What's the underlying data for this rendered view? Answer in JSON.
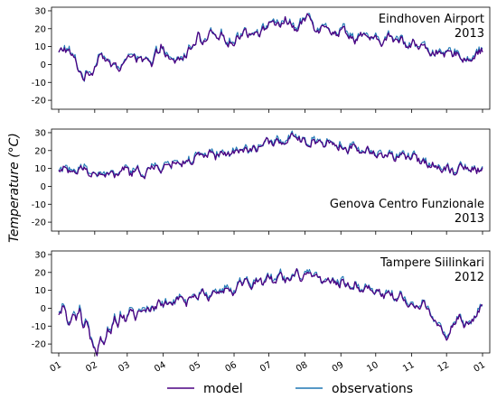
{
  "chart_data": [
    {
      "type": "line",
      "station": "Eindhoven Airport",
      "year": "2013",
      "label_position": "top-right",
      "ylim": [
        -25,
        32
      ],
      "yticks": [
        -20,
        -10,
        0,
        10,
        20,
        30
      ],
      "xlim": [
        0,
        365
      ],
      "xticks": [
        0,
        31,
        59,
        90,
        120,
        151,
        181,
        212,
        243,
        273,
        304,
        334,
        365
      ],
      "xticklabels": [
        "",
        "",
        "",
        "",
        "",
        "",
        "",
        "",
        "",
        "",
        "",
        "",
        ""
      ],
      "anchors": [
        [
          0,
          6
        ],
        [
          5,
          9
        ],
        [
          10,
          6
        ],
        [
          14,
          2
        ],
        [
          18,
          -4
        ],
        [
          22,
          -7
        ],
        [
          26,
          -5
        ],
        [
          30,
          -3
        ],
        [
          33,
          3
        ],
        [
          36,
          8
        ],
        [
          40,
          3
        ],
        [
          44,
          -1
        ],
        [
          48,
          0
        ],
        [
          52,
          -3
        ],
        [
          56,
          1
        ],
        [
          60,
          2
        ],
        [
          64,
          8
        ],
        [
          68,
          3
        ],
        [
          72,
          1
        ],
        [
          76,
          2
        ],
        [
          80,
          -2
        ],
        [
          84,
          5
        ],
        [
          88,
          11
        ],
        [
          92,
          5
        ],
        [
          96,
          1
        ],
        [
          100,
          1
        ],
        [
          104,
          3
        ],
        [
          108,
          4
        ],
        [
          112,
          8
        ],
        [
          116,
          12
        ],
        [
          120,
          16
        ],
        [
          124,
          10
        ],
        [
          128,
          14
        ],
        [
          132,
          18
        ],
        [
          136,
          12
        ],
        [
          140,
          15
        ],
        [
          145,
          14
        ],
        [
          150,
          12
        ],
        [
          155,
          16
        ],
        [
          160,
          20
        ],
        [
          165,
          16
        ],
        [
          170,
          20
        ],
        [
          175,
          18
        ],
        [
          180,
          22
        ],
        [
          185,
          25
        ],
        [
          190,
          20
        ],
        [
          195,
          26
        ],
        [
          200,
          22
        ],
        [
          205,
          19
        ],
        [
          210,
          23
        ],
        [
          215,
          28
        ],
        [
          220,
          22
        ],
        [
          225,
          20
        ],
        [
          230,
          24
        ],
        [
          235,
          19
        ],
        [
          240,
          17
        ],
        [
          245,
          20
        ],
        [
          250,
          17
        ],
        [
          255,
          14
        ],
        [
          260,
          17
        ],
        [
          265,
          13
        ],
        [
          270,
          15
        ],
        [
          275,
          12
        ],
        [
          280,
          13
        ],
        [
          285,
          16
        ],
        [
          290,
          12
        ],
        [
          295,
          15
        ],
        [
          300,
          11
        ],
        [
          305,
          13
        ],
        [
          310,
          9
        ],
        [
          315,
          10
        ],
        [
          320,
          7
        ],
        [
          325,
          8
        ],
        [
          330,
          3
        ],
        [
          335,
          6
        ],
        [
          340,
          5
        ],
        [
          345,
          7
        ],
        [
          350,
          2
        ],
        [
          355,
          4
        ],
        [
          360,
          7
        ],
        [
          365,
          8
        ]
      ],
      "series": [
        {
          "name": "model",
          "color": "#4b0082"
        },
        {
          "name": "observations",
          "color": "#1f77b4"
        }
      ]
    },
    {
      "type": "line",
      "station": "Genova Centro Funzionale",
      "year": "2013",
      "label_position": "bottom-right",
      "ylim": [
        -25,
        32
      ],
      "yticks": [
        -20,
        -10,
        0,
        10,
        20,
        30
      ],
      "xlim": [
        0,
        365
      ],
      "xticks": [
        0,
        31,
        59,
        90,
        120,
        151,
        181,
        212,
        243,
        273,
        304,
        334,
        365
      ],
      "xticklabels": [
        "",
        "",
        "",
        "",
        "",
        "",
        "",
        "",
        "",
        "",
        "",
        "",
        ""
      ],
      "anchors": [
        [
          0,
          8
        ],
        [
          4,
          12
        ],
        [
          8,
          6
        ],
        [
          12,
          9
        ],
        [
          16,
          7
        ],
        [
          20,
          10
        ],
        [
          25,
          8
        ],
        [
          30,
          9
        ],
        [
          34,
          5
        ],
        [
          38,
          8
        ],
        [
          42,
          6
        ],
        [
          46,
          7
        ],
        [
          50,
          5
        ],
        [
          54,
          9
        ],
        [
          58,
          10
        ],
        [
          62,
          6
        ],
        [
          66,
          8
        ],
        [
          70,
          9
        ],
        [
          74,
          7
        ],
        [
          78,
          10
        ],
        [
          82,
          9
        ],
        [
          86,
          11
        ],
        [
          90,
          10
        ],
        [
          95,
          12
        ],
        [
          100,
          14
        ],
        [
          105,
          12
        ],
        [
          110,
          15
        ],
        [
          115,
          13
        ],
        [
          120,
          17
        ],
        [
          125,
          15
        ],
        [
          130,
          18
        ],
        [
          135,
          16
        ],
        [
          140,
          18
        ],
        [
          145,
          17
        ],
        [
          150,
          20
        ],
        [
          155,
          18
        ],
        [
          160,
          21
        ],
        [
          165,
          19
        ],
        [
          170,
          21
        ],
        [
          175,
          23
        ],
        [
          180,
          24
        ],
        [
          185,
          23
        ],
        [
          190,
          26
        ],
        [
          195,
          24
        ],
        [
          200,
          27
        ],
        [
          205,
          25
        ],
        [
          210,
          26
        ],
        [
          215,
          24
        ],
        [
          220,
          26
        ],
        [
          225,
          25
        ],
        [
          230,
          24
        ],
        [
          235,
          25
        ],
        [
          240,
          22
        ],
        [
          245,
          23
        ],
        [
          250,
          21
        ],
        [
          255,
          22
        ],
        [
          260,
          19
        ],
        [
          265,
          21
        ],
        [
          270,
          18
        ],
        [
          275,
          19
        ],
        [
          280,
          17
        ],
        [
          285,
          18
        ],
        [
          290,
          16
        ],
        [
          295,
          17
        ],
        [
          300,
          15
        ],
        [
          305,
          16
        ],
        [
          310,
          14
        ],
        [
          315,
          14
        ],
        [
          320,
          13
        ],
        [
          325,
          12
        ],
        [
          330,
          10
        ],
        [
          335,
          11
        ],
        [
          340,
          9
        ],
        [
          345,
          10
        ],
        [
          350,
          12
        ],
        [
          355,
          10
        ],
        [
          360,
          9
        ],
        [
          365,
          10
        ]
      ],
      "series": [
        {
          "name": "model",
          "color": "#4b0082"
        },
        {
          "name": "observations",
          "color": "#1f77b4"
        }
      ]
    },
    {
      "type": "line",
      "station": "Tampere Siilinkari",
      "year": "2012",
      "label_position": "top-right",
      "ylim": [
        -25,
        32
      ],
      "yticks": [
        -20,
        -10,
        0,
        10,
        20,
        30
      ],
      "xlim": [
        0,
        365
      ],
      "xticks": [
        0,
        31,
        59,
        90,
        120,
        151,
        181,
        212,
        243,
        273,
        304,
        334,
        365
      ],
      "xticklabels": [
        "01",
        "02",
        "03",
        "04",
        "05",
        "06",
        "07",
        "08",
        "09",
        "10",
        "11",
        "12",
        "01"
      ],
      "anchors": [
        [
          0,
          -5
        ],
        [
          3,
          0
        ],
        [
          6,
          -3
        ],
        [
          9,
          -10
        ],
        [
          12,
          -4
        ],
        [
          15,
          -8
        ],
        [
          18,
          -2
        ],
        [
          21,
          -12
        ],
        [
          24,
          -9
        ],
        [
          27,
          -17
        ],
        [
          30,
          -20
        ],
        [
          33,
          -23
        ],
        [
          36,
          -15
        ],
        [
          39,
          -18
        ],
        [
          42,
          -10
        ],
        [
          45,
          -13
        ],
        [
          48,
          -5
        ],
        [
          51,
          -8
        ],
        [
          54,
          -3
        ],
        [
          57,
          -6
        ],
        [
          60,
          -4
        ],
        [
          63,
          -1
        ],
        [
          66,
          -5
        ],
        [
          69,
          -2
        ],
        [
          72,
          0
        ],
        [
          75,
          -3
        ],
        [
          78,
          -1
        ],
        [
          81,
          2
        ],
        [
          84,
          0
        ],
        [
          87,
          3
        ],
        [
          90,
          1
        ],
        [
          95,
          4
        ],
        [
          100,
          2
        ],
        [
          105,
          5
        ],
        [
          110,
          3
        ],
        [
          115,
          7
        ],
        [
          120,
          5
        ],
        [
          125,
          9
        ],
        [
          130,
          7
        ],
        [
          135,
          11
        ],
        [
          140,
          9
        ],
        [
          145,
          12
        ],
        [
          150,
          10
        ],
        [
          155,
          13
        ],
        [
          160,
          15
        ],
        [
          165,
          12
        ],
        [
          170,
          16
        ],
        [
          175,
          14
        ],
        [
          180,
          17
        ],
        [
          185,
          15
        ],
        [
          190,
          19
        ],
        [
          195,
          16
        ],
        [
          200,
          18
        ],
        [
          205,
          20
        ],
        [
          210,
          16
        ],
        [
          215,
          19
        ],
        [
          220,
          15
        ],
        [
          225,
          17
        ],
        [
          230,
          14
        ],
        [
          235,
          16
        ],
        [
          240,
          13
        ],
        [
          245,
          15
        ],
        [
          250,
          12
        ],
        [
          255,
          14
        ],
        [
          260,
          11
        ],
        [
          265,
          12
        ],
        [
          270,
          9
        ],
        [
          275,
          11
        ],
        [
          280,
          7
        ],
        [
          285,
          9
        ],
        [
          290,
          5
        ],
        [
          295,
          7
        ],
        [
          300,
          2
        ],
        [
          305,
          4
        ],
        [
          310,
          -1
        ],
        [
          315,
          2
        ],
        [
          320,
          -3
        ],
        [
          325,
          -6
        ],
        [
          330,
          -12
        ],
        [
          335,
          -16
        ],
        [
          340,
          -8
        ],
        [
          345,
          -5
        ],
        [
          350,
          -10
        ],
        [
          355,
          -7
        ],
        [
          360,
          -3
        ],
        [
          365,
          1
        ]
      ],
      "series": [
        {
          "name": "model",
          "color": "#4b0082"
        },
        {
          "name": "observations",
          "color": "#1f77b4"
        }
      ]
    }
  ],
  "ylabel": "Temperature (°C)",
  "legend": {
    "placement": "bottom-center",
    "items": [
      {
        "name": "model",
        "color": "#4b0082"
      },
      {
        "name": "observations",
        "color": "#1f77b4"
      }
    ]
  }
}
